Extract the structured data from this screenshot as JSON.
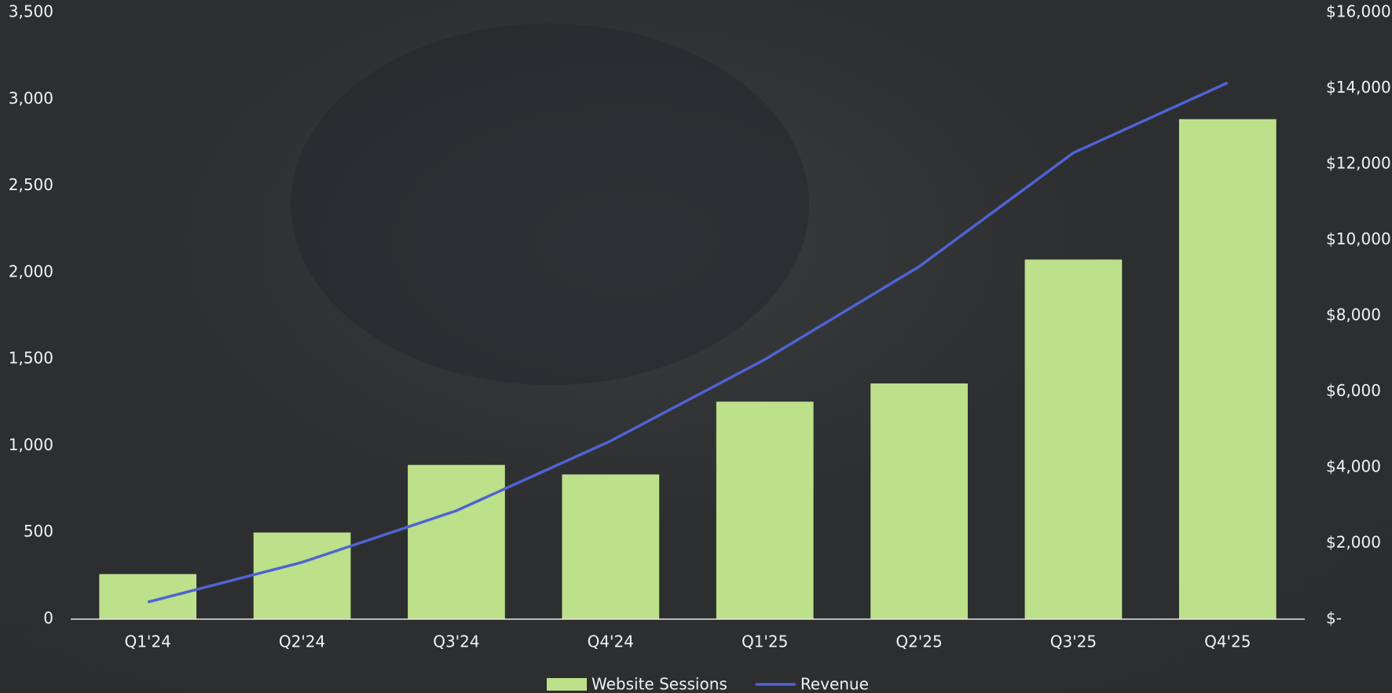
{
  "chart_data": {
    "type": "bar",
    "categories": [
      "Q1'24",
      "Q2'24",
      "Q3'24",
      "Q4'24",
      "Q1'25",
      "Q2'25",
      "Q3'25",
      "Q4'25"
    ],
    "series": [
      {
        "name": "Website Sessions",
        "type": "bar",
        "color": "#bde08a",
        "values": [
          260,
          500,
          890,
          835,
          1255,
          1360,
          2075,
          2885
        ]
      },
      {
        "name": "Revenue",
        "type": "line",
        "axis": "y2",
        "color": "#4f63d2",
        "values": [
          450,
          1500,
          2860,
          4700,
          6850,
          9300,
          12300,
          14150
        ]
      }
    ],
    "ylim": [
      0,
      3500
    ],
    "yticks": [
      0,
      500,
      {
        "value": 1000,
        "label": "1,000"
      },
      {
        "value": 1500,
        "label": "1,500"
      },
      {
        "value": 2000,
        "label": "2,000"
      },
      {
        "value": 2500,
        "label": "2,500"
      },
      {
        "value": 3000,
        "label": "3,000"
      },
      {
        "value": 3500,
        "label": "3,500"
      }
    ],
    "y2lim": [
      0,
      16000
    ],
    "y2ticks": [
      {
        "value": 0,
        "label": "$-"
      },
      {
        "value": 2000,
        "label": "$2,000"
      },
      {
        "value": 4000,
        "label": "$4,000"
      },
      {
        "value": 6000,
        "label": "$6,000"
      },
      {
        "value": 8000,
        "label": "$8,000"
      },
      {
        "value": 10000,
        "label": "$10,000"
      },
      {
        "value": 12000,
        "label": "$12,000"
      },
      {
        "value": 14000,
        "label": "$14,000"
      },
      {
        "value": 16000,
        "label": "$16,000"
      }
    ],
    "legend": "bottom",
    "grid": false
  }
}
